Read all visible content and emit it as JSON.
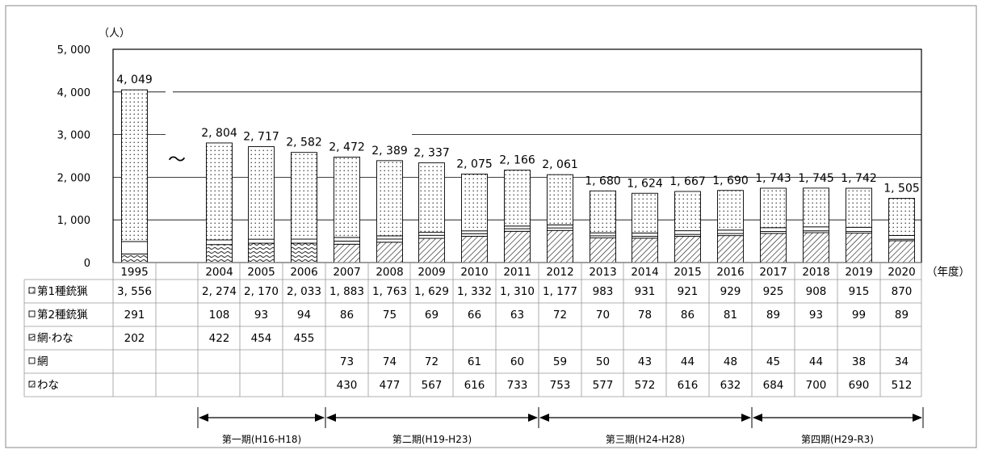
{
  "chart_data": {
    "type": "bar",
    "stacked": true,
    "ylabel": "（人）",
    "xunit": "（年度）",
    "ylim": [
      0,
      5000
    ],
    "yticks": [
      "0",
      "1,000",
      "2,000",
      "3,000",
      "4,000",
      "5,000"
    ],
    "break_symbol": "～",
    "categories": [
      "1995",
      "",
      "2004",
      "2005",
      "2006",
      "2007",
      "2008",
      "2009",
      "2010",
      "2011",
      "2012",
      "2013",
      "2014",
      "2015",
      "2016",
      "2017",
      "2018",
      "2019",
      "2020"
    ],
    "totals": [
      "4,049",
      "",
      "2,804",
      "2,717",
      "2,582",
      "2,472",
      "2,389",
      "2,337",
      "2,075",
      "2,166",
      "2,061",
      "1,680",
      "1,624",
      "1,667",
      "1,690",
      "1,743",
      "1,745",
      "1,742",
      "1,505"
    ],
    "series": [
      {
        "name": "第1種銃猟",
        "values": [
          3556,
          null,
          2274,
          2170,
          2033,
          1883,
          1763,
          1629,
          1332,
          1310,
          1177,
          983,
          931,
          921,
          929,
          925,
          908,
          915,
          870
        ]
      },
      {
        "name": "第2種銃猟",
        "values": [
          291,
          null,
          108,
          93,
          94,
          86,
          75,
          69,
          66,
          63,
          72,
          70,
          78,
          86,
          81,
          89,
          93,
          99,
          89
        ]
      },
      {
        "name": "網·わな",
        "values": [
          202,
          null,
          422,
          454,
          455,
          null,
          null,
          null,
          null,
          null,
          null,
          null,
          null,
          null,
          null,
          null,
          null,
          null,
          null
        ]
      },
      {
        "name": "網",
        "values": [
          null,
          null,
          null,
          null,
          null,
          73,
          74,
          72,
          61,
          60,
          59,
          50,
          43,
          44,
          48,
          45,
          44,
          38,
          34
        ]
      },
      {
        "name": "わな",
        "values": [
          null,
          null,
          null,
          null,
          null,
          430,
          477,
          567,
          616,
          733,
          753,
          577,
          572,
          616,
          632,
          684,
          700,
          690,
          512
        ]
      }
    ],
    "table_cells": [
      [
        "3, 556",
        "",
        "2, 274",
        "2, 170",
        "2, 033",
        "1, 883",
        "1, 763",
        "1, 629",
        "1, 332",
        "1, 310",
        "1, 177",
        "983",
        "931",
        "921",
        "929",
        "925",
        "908",
        "915",
        "870"
      ],
      [
        "291",
        "",
        "108",
        "93",
        "94",
        "86",
        "75",
        "69",
        "66",
        "63",
        "72",
        "70",
        "78",
        "86",
        "81",
        "89",
        "93",
        "99",
        "89"
      ],
      [
        "202",
        "",
        "422",
        "454",
        "455",
        "",
        "",
        "",
        "",
        "",
        "",
        "",
        "",
        "",
        "",
        "",
        "",
        "",
        ""
      ],
      [
        "",
        "",
        "",
        "",
        "",
        "73",
        "74",
        "72",
        "61",
        "60",
        "59",
        "50",
        "43",
        "44",
        "48",
        "45",
        "44",
        "38",
        "34"
      ],
      [
        "",
        "",
        "",
        "",
        "",
        "430",
        "477",
        "567",
        "616",
        "733",
        "753",
        "577",
        "572",
        "616",
        "632",
        "684",
        "700",
        "690",
        "512"
      ]
    ],
    "total_labels": [
      "4, 049",
      "",
      "2, 804",
      "2, 717",
      "2, 582",
      "2, 472",
      "2, 389",
      "2, 337",
      "2, 075",
      "2, 166",
      "2, 061",
      "1, 680",
      "1, 624",
      "1, 667",
      "1, 690",
      "1, 743",
      "1, 745",
      "1, 742",
      "1, 505"
    ],
    "ytick_labels": [
      "0",
      "1, 000",
      "2, 000",
      "3, 000",
      "4, 000",
      "5, 000"
    ],
    "periods": [
      {
        "label": "第一期(H16-H18)",
        "from": "2004",
        "to": "2006"
      },
      {
        "label": "第二期(H19-H23)",
        "from": "2007",
        "to": "2011"
      },
      {
        "label": "第三期(H24-H28)",
        "from": "2012",
        "to": "2016"
      },
      {
        "label": "第四期(H29-R3)",
        "from": "2017",
        "to": "2020"
      }
    ]
  }
}
